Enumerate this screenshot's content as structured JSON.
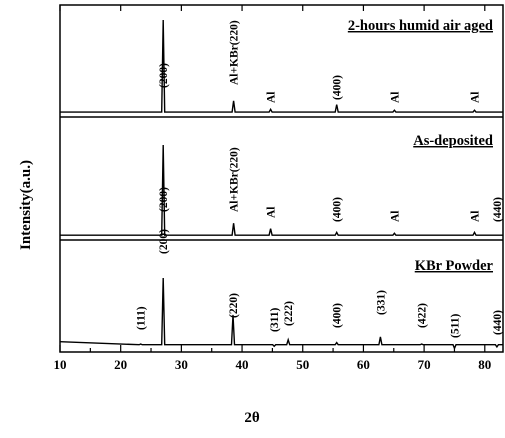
{
  "chart_data": {
    "type": "line",
    "xlabel": "2θ",
    "ylabel": "Intensity(a.u.)",
    "xlim": [
      10,
      83
    ],
    "xticks": [
      10,
      20,
      30,
      40,
      50,
      60,
      70,
      80
    ],
    "grid": false,
    "legend": "none",
    "series": [
      {
        "name": "2-hours humid air aged",
        "baseline": 0.02,
        "ylim": [
          0,
          1
        ],
        "peaks": [
          {
            "x": 27.0,
            "y": 1.0,
            "label": "(200)"
          },
          {
            "x": 38.6,
            "y": 0.14,
            "label": "Al+KBr(220)"
          },
          {
            "x": 44.7,
            "y": 0.05,
            "label": "Al"
          },
          {
            "x": 55.6,
            "y": 0.1,
            "label": "(400)"
          },
          {
            "x": 65.1,
            "y": 0.04,
            "label": "Al"
          },
          {
            "x": 78.3,
            "y": 0.04,
            "label": "Al"
          }
        ]
      },
      {
        "name": "As-deposited",
        "baseline": 0.02,
        "ylim": [
          0,
          1
        ],
        "peaks": [
          {
            "x": 27.0,
            "y": 1.0,
            "label": "(200)"
          },
          {
            "x": 38.6,
            "y": 0.15,
            "label": "Al+KBr(220)"
          },
          {
            "x": 44.7,
            "y": 0.09,
            "label": "Al"
          },
          {
            "x": 55.6,
            "y": 0.05,
            "label": "(400)"
          },
          {
            "x": 65.1,
            "y": 0.04,
            "label": "Al"
          },
          {
            "x": 78.3,
            "y": 0.05,
            "label": "Al"
          },
          {
            "x": 82.0,
            "y": 0.02,
            "label": "(440)"
          }
        ]
      },
      {
        "name": "KBr Powder",
        "baseline": 0.06,
        "ylim": [
          0,
          1
        ],
        "peaks": [
          {
            "x": 23.3,
            "y": 0.07,
            "label": "(111)"
          },
          {
            "x": 27.0,
            "y": 1.0,
            "label": "(200)"
          },
          {
            "x": 38.5,
            "y": 0.48,
            "label": "(220)"
          },
          {
            "x": 45.3,
            "y": 0.04,
            "label": "(311)"
          },
          {
            "x": 47.6,
            "y": 0.13,
            "label": "(222)"
          },
          {
            "x": 55.6,
            "y": 0.09,
            "label": "(400)"
          },
          {
            "x": 62.8,
            "y": 0.17,
            "label": "(331)"
          },
          {
            "x": 69.6,
            "y": 0.07,
            "label": "(422)"
          },
          {
            "x": 75.0,
            "y": 0.01,
            "label": "(511)"
          },
          {
            "x": 82.0,
            "y": 0.03,
            "label": "(440)"
          }
        ]
      }
    ]
  }
}
